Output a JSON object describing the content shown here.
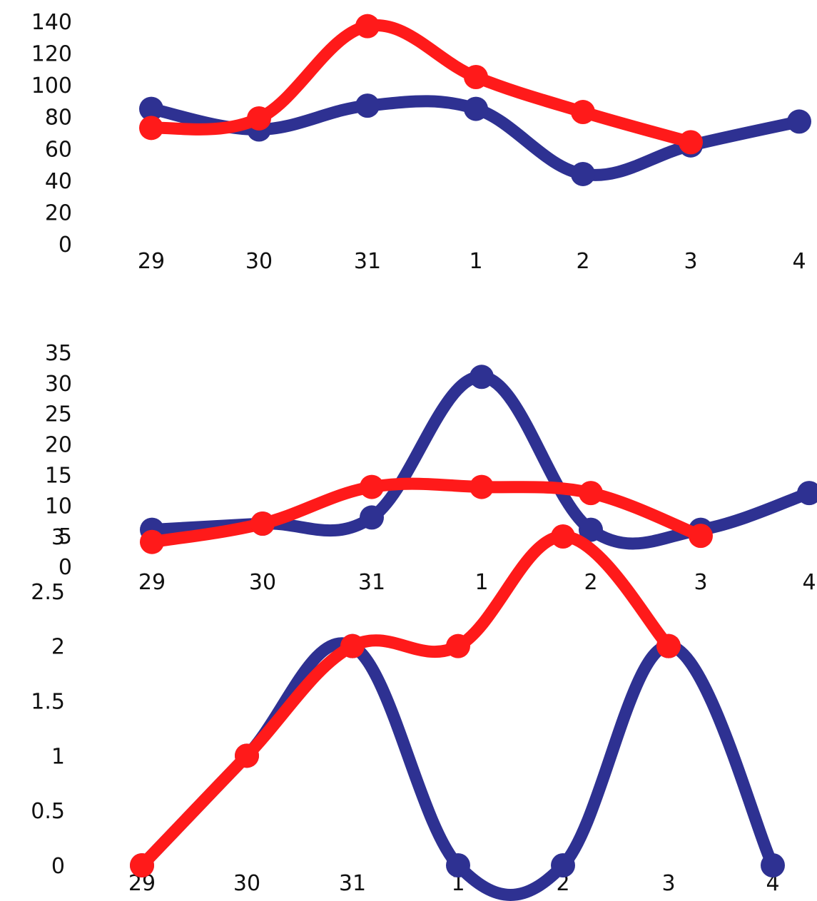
{
  "colors": {
    "series_a": "#2e3192",
    "series_b": "#ff1a1a",
    "tick_text": "#111111"
  },
  "chart_data": [
    {
      "type": "line",
      "smooth": true,
      "grid": false,
      "legend": "none",
      "categories": [
        "29",
        "30",
        "31",
        "1",
        "2",
        "3",
        "4"
      ],
      "yticks": [
        "0",
        "20",
        "40",
        "60",
        "80",
        "100",
        "120",
        "140"
      ],
      "ylim": [
        0,
        140
      ],
      "series": [
        {
          "color": "#2e3192",
          "values": [
            85,
            72,
            87,
            85,
            44,
            62,
            77
          ]
        },
        {
          "color": "#ff1a1a",
          "values": [
            73,
            79,
            137,
            105,
            83,
            64,
            null
          ]
        }
      ]
    },
    {
      "type": "line",
      "smooth": true,
      "grid": false,
      "legend": "none",
      "categories": [
        "29",
        "30",
        "31",
        "1",
        "2",
        "3",
        "4"
      ],
      "yticks": [
        "0",
        "5",
        "10",
        "15",
        "20",
        "25",
        "30",
        "35"
      ],
      "ylim": [
        0,
        35
      ],
      "series": [
        {
          "color": "#2e3192",
          "values": [
            6,
            7,
            8,
            31,
            6,
            6,
            12
          ]
        },
        {
          "color": "#ff1a1a",
          "values": [
            4,
            7,
            13,
            13,
            12,
            5,
            null
          ]
        }
      ]
    },
    {
      "type": "line",
      "smooth": true,
      "grid": false,
      "legend": "none",
      "categories": [
        "29",
        "30",
        "31",
        "1",
        "2",
        "3",
        "4"
      ],
      "yticks": [
        "0",
        "0.5",
        "1",
        "1.5",
        "2",
        "2.5",
        "3"
      ],
      "ylim": [
        0,
        3
      ],
      "series": [
        {
          "color": "#2e3192",
          "values": [
            0,
            1,
            2,
            0,
            0,
            2,
            0
          ]
        },
        {
          "color": "#ff1a1a",
          "values": [
            0,
            1,
            2,
            2,
            3,
            2,
            null
          ]
        }
      ]
    }
  ]
}
